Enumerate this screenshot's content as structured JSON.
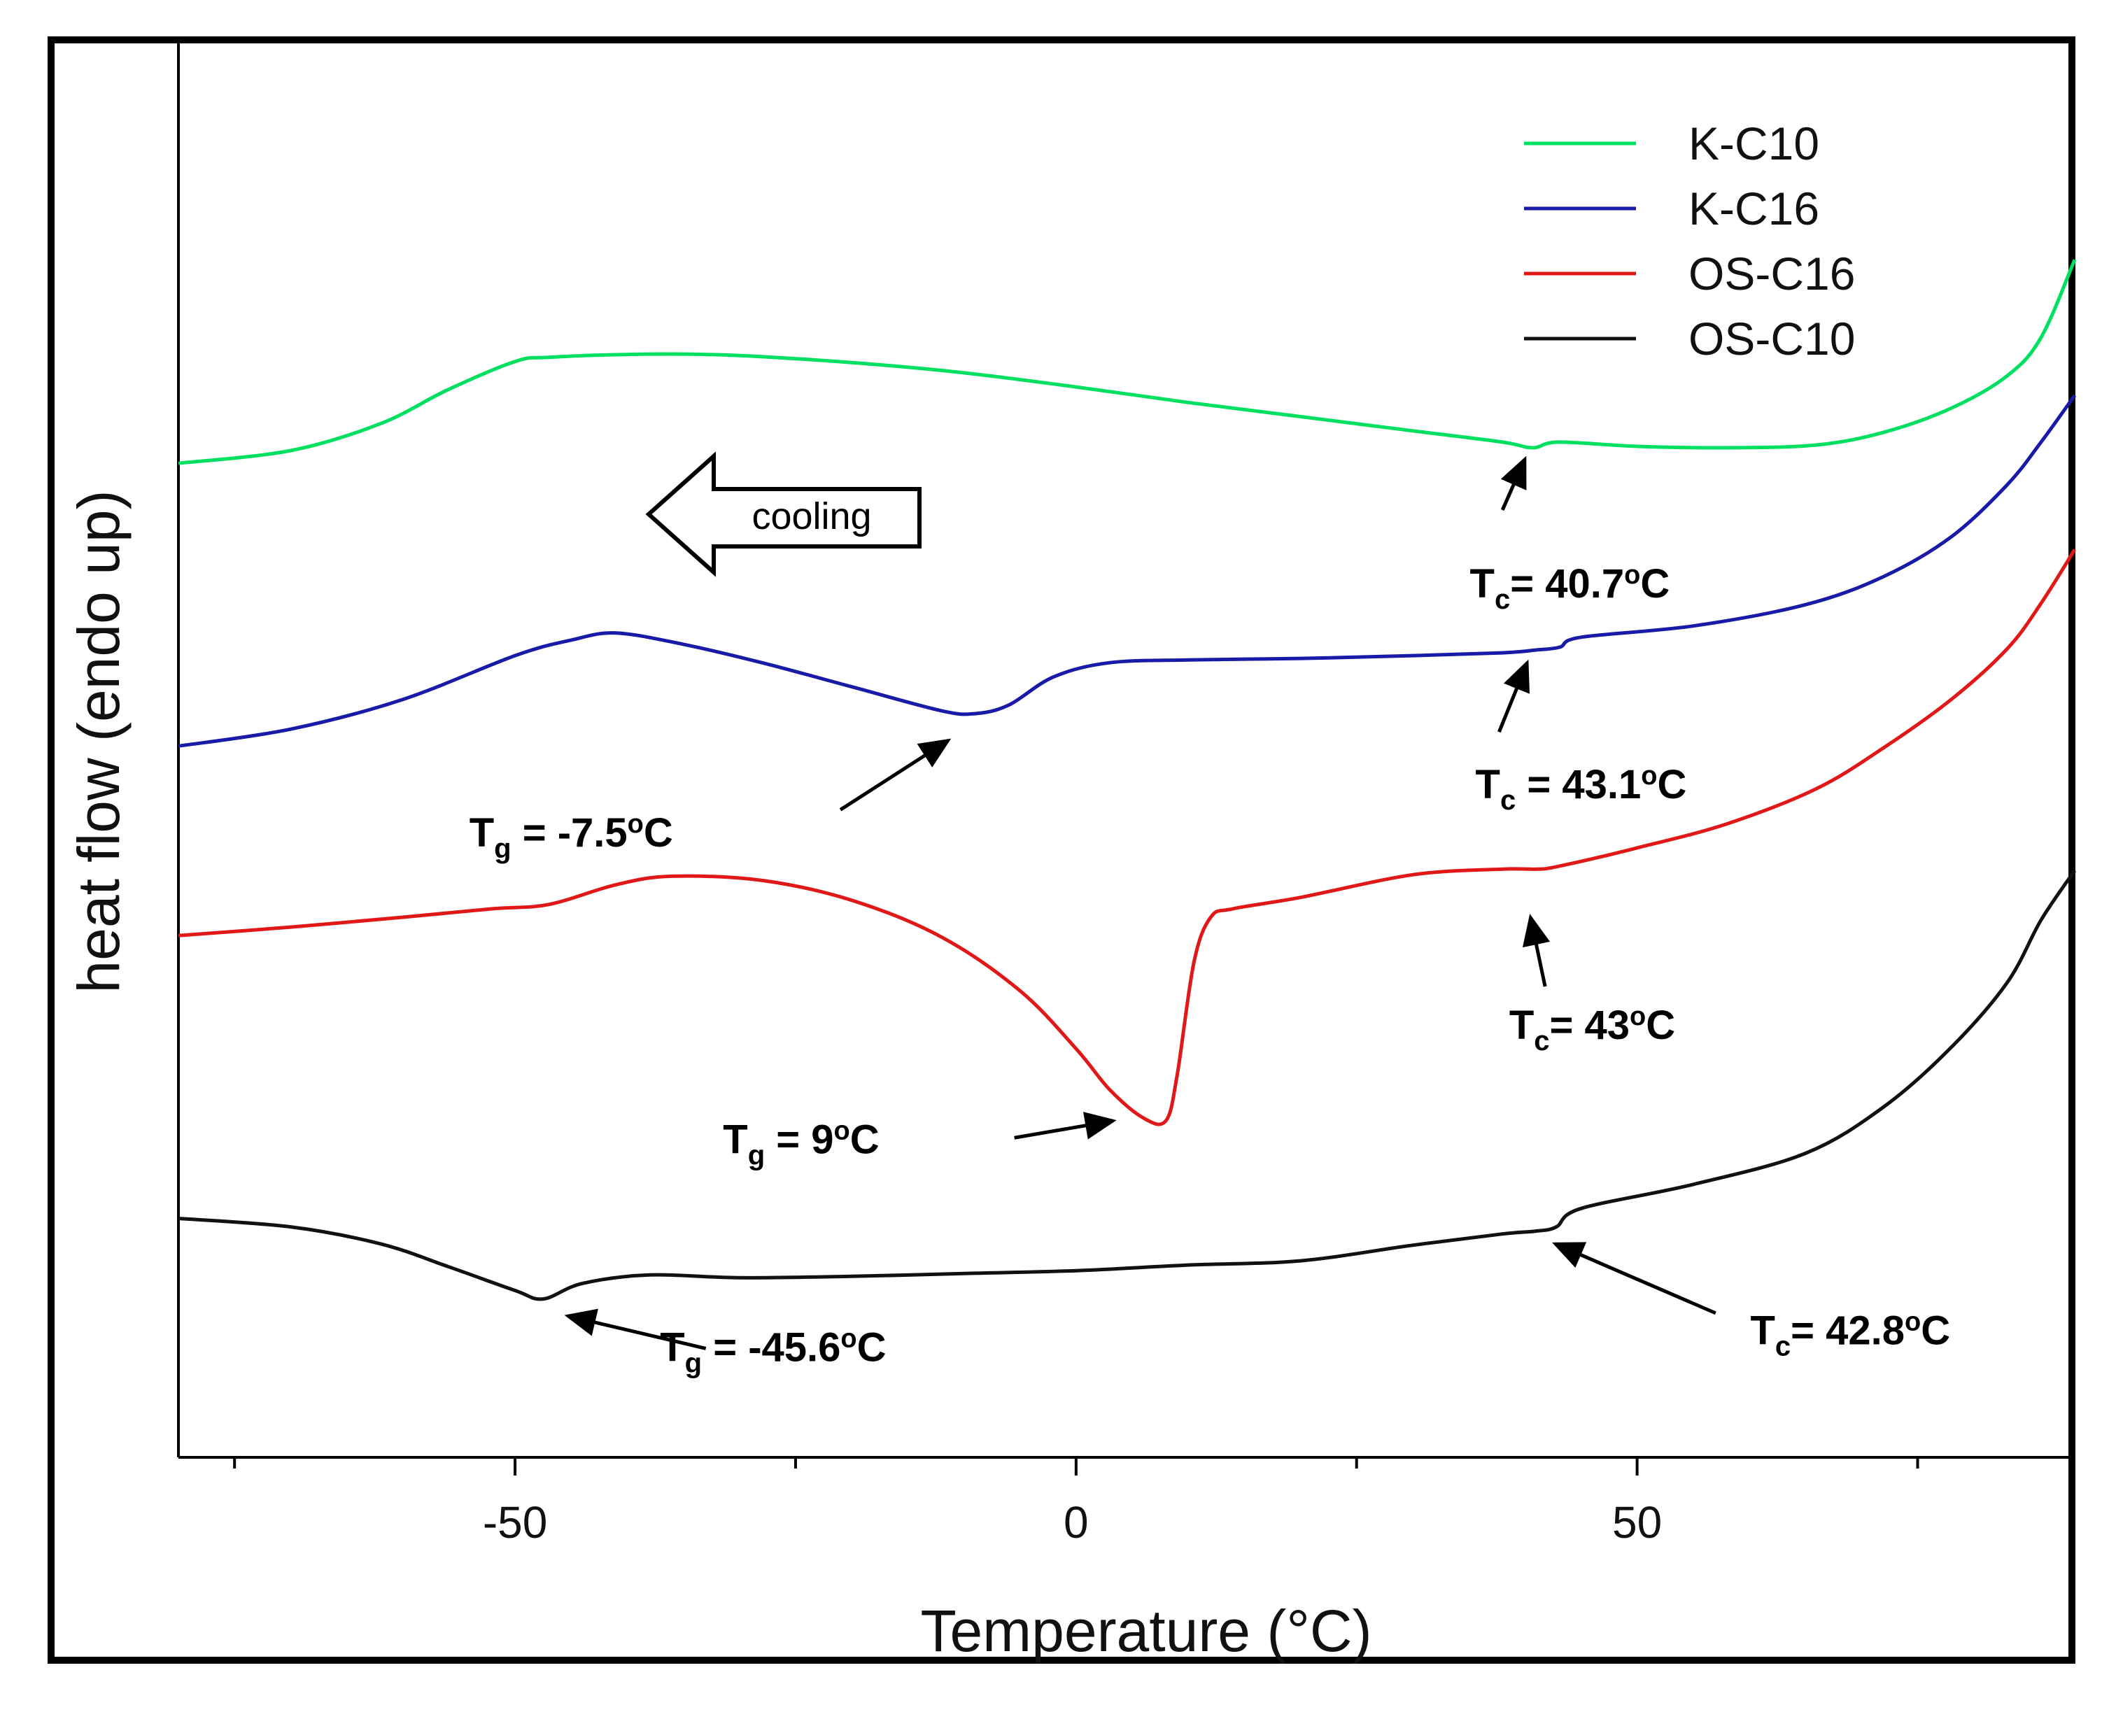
{
  "chart_data": {
    "type": "line",
    "title": "",
    "xlabel": "Temperature (°C)",
    "ylabel": "heat flow (endo up)",
    "xlim": [
      -80,
      89
    ],
    "ylim": [
      0,
      100
    ],
    "x_ticks": [
      -50,
      0,
      50
    ],
    "x_minor_ticks": [
      -75,
      -25,
      25,
      75
    ],
    "legend_position": "top-right",
    "series": [
      {
        "name": "K-C10",
        "color": "#00e060",
        "x": [
          -80,
          -70,
          -62,
          -56,
          -50,
          -47,
          -40,
          -33,
          -27,
          -18,
          -10,
          0,
          10,
          20,
          30,
          38,
          40.7,
          43,
          50,
          58,
          66,
          72,
          78,
          83,
          86,
          89
        ],
        "y": [
          70.3,
          71.2,
          73.1,
          75.5,
          77.5,
          77.8,
          78.0,
          78.0,
          77.8,
          77.3,
          76.7,
          75.7,
          74.6,
          73.6,
          72.6,
          71.8,
          71.4,
          71.8,
          71.5,
          71.4,
          71.6,
          72.5,
          74.2,
          76.5,
          79.2,
          84.7
        ]
      },
      {
        "name": "K-C16",
        "color": "#1a1aa8",
        "x": [
          -80,
          -70,
          -60,
          -50,
          -45,
          -41,
          -35,
          -28,
          -20,
          -12,
          -9,
          -6,
          -2,
          3,
          10,
          20,
          30,
          38,
          41,
          43.1,
          45,
          55,
          65,
          72,
          78,
          83,
          86,
          89
        ],
        "y": [
          50.3,
          51.5,
          53.6,
          56.7,
          57.8,
          58.3,
          57.5,
          56.2,
          54.5,
          52.8,
          52.6,
          53.2,
          55.2,
          56.2,
          56.4,
          56.5,
          56.7,
          56.9,
          57.1,
          57.3,
          58.0,
          58.8,
          60.3,
          62.3,
          65.1,
          68.8,
          71.8,
          75.1
        ]
      },
      {
        "name": "OS-C16",
        "color": "#e01818",
        "x": [
          -80,
          -70,
          -60,
          -52,
          -47,
          -41,
          -36,
          -28,
          -20,
          -12,
          -5,
          0,
          3,
          6,
          8,
          9,
          10.5,
          12,
          14,
          20,
          30,
          38,
          41,
          43,
          50,
          58,
          66,
          72,
          78,
          83,
          86,
          89
        ],
        "y": [
          36.9,
          37.5,
          38.2,
          38.8,
          39.1,
          40.5,
          41.1,
          40.8,
          39.4,
          36.8,
          33.0,
          28.9,
          26.0,
          24.0,
          23.8,
          27.0,
          35.0,
          38.2,
          38.8,
          39.6,
          41.2,
          41.6,
          41.6,
          41.8,
          43.1,
          44.8,
          47.3,
          50.2,
          53.6,
          57.2,
          60.4,
          64.2
        ]
      },
      {
        "name": "OS-C10",
        "color": "#111111",
        "x": [
          -80,
          -70,
          -62,
          -56,
          -50,
          -47.5,
          -44,
          -38,
          -30,
          -20,
          -10,
          0,
          10,
          20,
          30,
          38,
          41,
          42.8,
          45,
          55,
          65,
          72,
          78,
          83,
          86,
          89
        ],
        "y": [
          16.9,
          16.3,
          15.1,
          13.5,
          11.8,
          11.2,
          12.3,
          12.9,
          12.7,
          12.8,
          13.0,
          13.2,
          13.6,
          13.9,
          15.0,
          15.8,
          16.0,
          16.3,
          17.6,
          19.3,
          21.5,
          24.8,
          29.0,
          33.6,
          38.0,
          41.5
        ]
      }
    ],
    "annotations": [
      {
        "name": "tc-k-c10",
        "symbol": "T",
        "sub": "c",
        "sep": "= ",
        "value": "40.7",
        "unit": "C",
        "point": [
          40.7,
          71.4
        ],
        "text_at": [
          44,
          60.8
        ],
        "tail": [
          38,
          67.0
        ],
        "head": [
          40.0,
          70.6
        ],
        "anchor": "middle"
      },
      {
        "name": "tc-k-c16",
        "symbol": "T",
        "sub": "c",
        "sep": " = ",
        "value": "43.1",
        "unit": "C",
        "point": [
          43.1,
          57.3
        ],
        "text_at": [
          45,
          46.6
        ],
        "tail": [
          37.7,
          51.3
        ],
        "head": [
          40.2,
          56.2
        ],
        "anchor": "middle"
      },
      {
        "name": "tg-k-c16",
        "symbol": "T",
        "sub": "g",
        "sep": " = ",
        "value": "-7.5",
        "unit": "C",
        "point": [
          -9,
          52.6
        ],
        "text_at": [
          -45,
          43.2
        ],
        "tail": [
          -21,
          45.8
        ],
        "head": [
          -11.4,
          50.7
        ],
        "anchor": "middle"
      },
      {
        "name": "tc-os-c16",
        "symbol": "T",
        "sub": "c",
        "sep": "= ",
        "value": "43",
        "unit": "C",
        "point": [
          41,
          41.6
        ],
        "text_at": [
          46,
          29.6
        ],
        "tail": [
          41.8,
          33.3
        ],
        "head": [
          40.5,
          38.2
        ],
        "anchor": "middle"
      },
      {
        "name": "tg-os-c16",
        "symbol": "T",
        "sub": "g",
        "sep": " = ",
        "value": "9",
        "unit": "C",
        "point": [
          8,
          23.8
        ],
        "text_at": [
          -24.5,
          21.5
        ],
        "tail": [
          -5.5,
          22.6
        ],
        "head": [
          3.3,
          23.8
        ],
        "anchor": "middle"
      },
      {
        "name": "tg-os-c10",
        "symbol": "T",
        "sub": "g",
        "sep": " = ",
        "value": "-45.6",
        "unit": "C",
        "point": [
          -47.5,
          11.2
        ],
        "text_at": [
          -27,
          6.8
        ],
        "tail": [
          -33,
          7.7
        ],
        "head": [
          -45.3,
          10.0
        ],
        "anchor": "middle"
      },
      {
        "name": "tc-os-c10",
        "symbol": "T",
        "sub": "c",
        "sep": "= ",
        "value": "42.8",
        "unit": "C",
        "point": [
          42.8,
          16.3
        ],
        "text_at": [
          69,
          8.0
        ],
        "tail": [
          57,
          10.2
        ],
        "head": [
          42.7,
          15.1
        ],
        "anchor": "middle"
      }
    ],
    "cooling_label": "cooling"
  }
}
